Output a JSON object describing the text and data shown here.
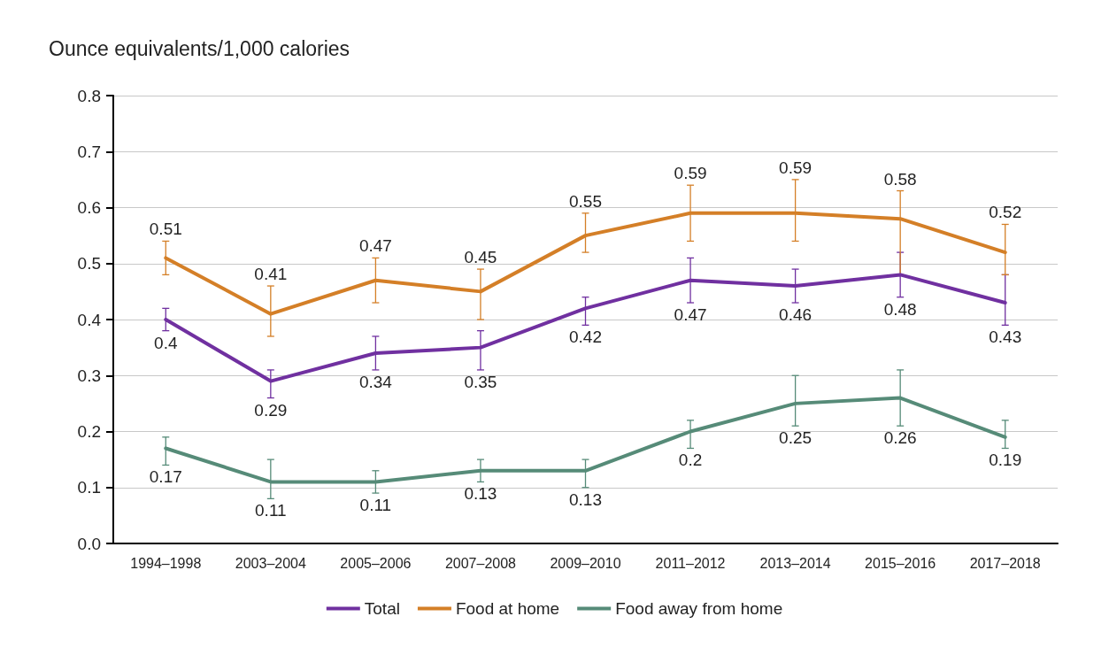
{
  "chart_data": {
    "type": "line",
    "ylabel": "Ounce equivalents/1,000 calories",
    "categories": [
      "1994–1998",
      "2003–2004",
      "2005–2006",
      "2007–2008",
      "2009–2010",
      "2011–2012",
      "2013–2014",
      "2015–2016",
      "2017–2018"
    ],
    "series": [
      {
        "name": "Total",
        "color": "#7030a0",
        "values": [
          0.4,
          0.29,
          0.34,
          0.35,
          0.42,
          0.47,
          0.46,
          0.48,
          0.43
        ],
        "errors": [
          [
            0.38,
            0.42
          ],
          [
            0.26,
            0.31
          ],
          [
            0.31,
            0.37
          ],
          [
            0.31,
            0.38
          ],
          [
            0.39,
            0.44
          ],
          [
            0.43,
            0.51
          ],
          [
            0.43,
            0.49
          ],
          [
            0.44,
            0.52
          ],
          [
            0.39,
            0.48
          ]
        ]
      },
      {
        "name": "Food at home",
        "color": "#d47f27",
        "values": [
          0.51,
          0.41,
          0.47,
          0.45,
          0.55,
          0.59,
          0.59,
          0.58,
          0.52
        ],
        "errors": [
          [
            0.48,
            0.54
          ],
          [
            0.37,
            0.46
          ],
          [
            0.43,
            0.51
          ],
          [
            0.4,
            0.49
          ],
          [
            0.52,
            0.59
          ],
          [
            0.54,
            0.64
          ],
          [
            0.54,
            0.65
          ],
          [
            0.48,
            0.63
          ],
          [
            0.48,
            0.57
          ]
        ]
      },
      {
        "name": "Food away from home",
        "color": "#568b78",
        "values": [
          0.17,
          0.11,
          0.11,
          0.13,
          0.13,
          0.2,
          0.25,
          0.26,
          0.19
        ],
        "errors": [
          [
            0.14,
            0.19
          ],
          [
            0.08,
            0.15
          ],
          [
            0.09,
            0.13
          ],
          [
            0.11,
            0.15
          ],
          [
            0.1,
            0.15
          ],
          [
            0.17,
            0.22
          ],
          [
            0.21,
            0.3
          ],
          [
            0.21,
            0.31
          ],
          [
            0.17,
            0.22
          ]
        ]
      }
    ],
    "ylim": [
      0,
      0.8
    ],
    "yticks": [
      {
        "value": 0,
        "label": "0.0"
      },
      0.1,
      0.2,
      0.3,
      0.4,
      0.5,
      0.6,
      0.7,
      0.8
    ],
    "grid": "y",
    "legend": "bottom",
    "data_labels": true,
    "marker": "none",
    "line_style": "solid"
  }
}
